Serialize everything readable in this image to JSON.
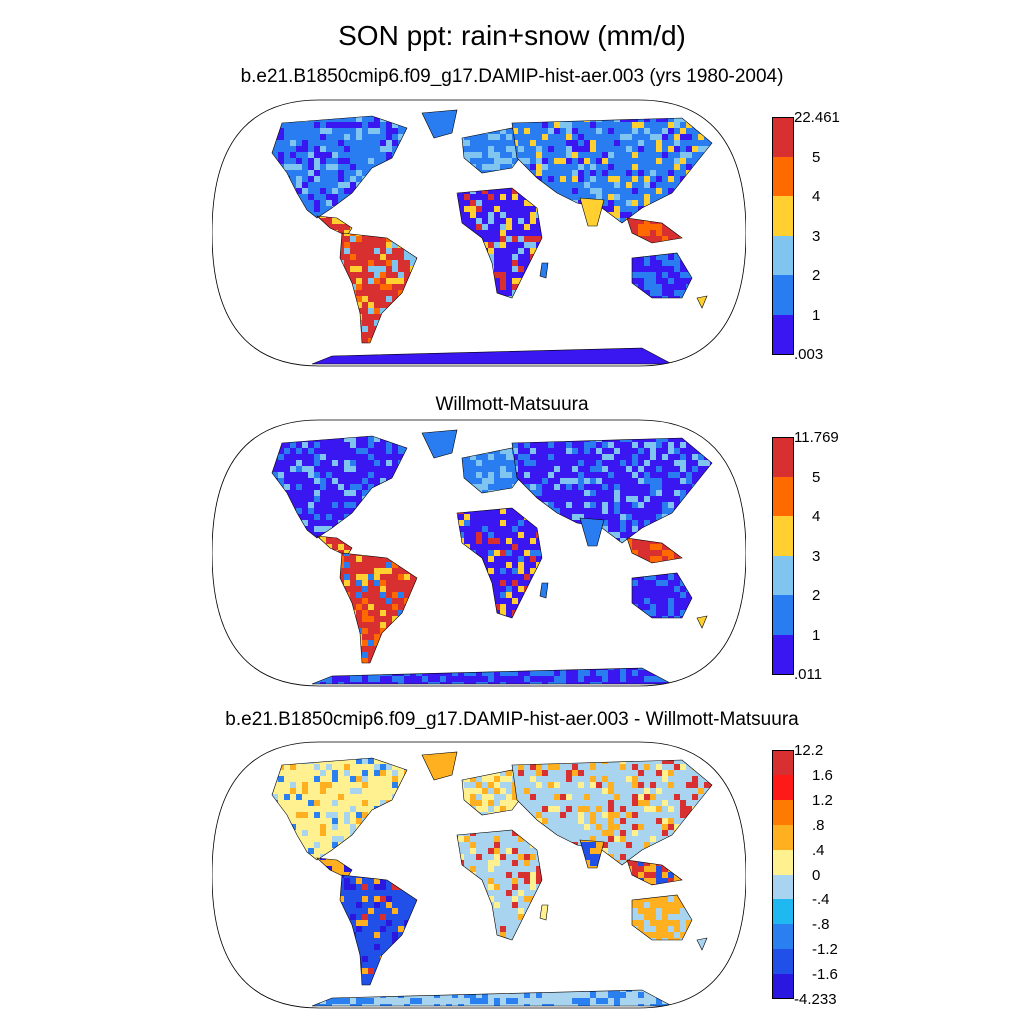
{
  "title": "SON ppt: rain+snow (mm/d)",
  "panels": [
    {
      "id": "model",
      "title": "b.e21.B1850cmip6.f09_g17.DAMIP-hist-aer.003 (yrs 1980-2004)",
      "colorbar": {
        "labels": [
          "22.461",
          "5",
          "4",
          "3",
          "2",
          "1",
          ".003"
        ],
        "colors": [
          "#d83030",
          "#ff6a00",
          "#ffd030",
          "#80c4f0",
          "#2a7df0",
          "#3a17f0"
        ]
      }
    },
    {
      "id": "obs",
      "title": "Willmott-Matsuura",
      "colorbar": {
        "labels": [
          "11.769",
          "5",
          "4",
          "3",
          "2",
          "1",
          ".011"
        ],
        "colors": [
          "#d83030",
          "#ff6a00",
          "#ffd030",
          "#80c4f0",
          "#2a7df0",
          "#3a17f0"
        ]
      }
    },
    {
      "id": "diff",
      "title": "b.e21.B1850cmip6.f09_g17.DAMIP-hist-aer.003 - Willmott-Matsuura",
      "colorbar": {
        "labels": [
          "12.2",
          "1.6",
          "1.2",
          ".8",
          ".4",
          "0",
          "-.4",
          "-.8",
          "-1.2",
          "-1.6",
          "-4.233"
        ],
        "colors": [
          "#d83030",
          "#ff1a1a",
          "#ff7a00",
          "#ffb020",
          "#fff090",
          "#a8d4f0",
          "#20b8f0",
          "#2a80f0",
          "#2050e8",
          "#2a17e0"
        ]
      }
    }
  ]
}
